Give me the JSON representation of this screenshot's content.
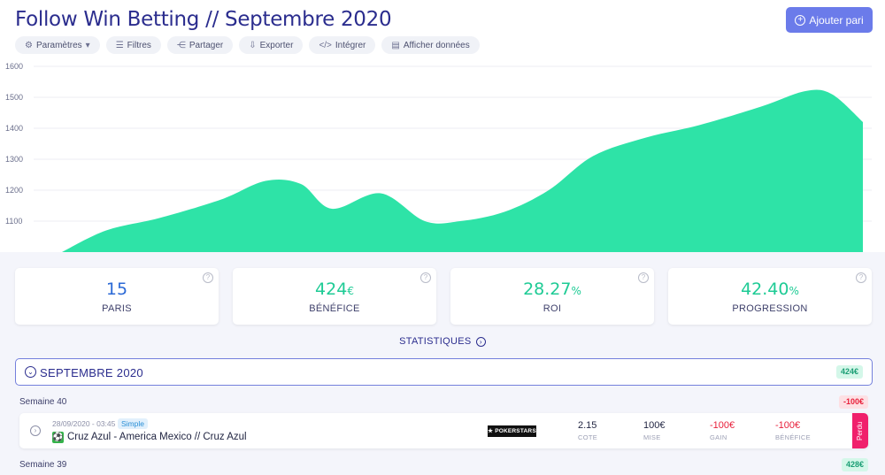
{
  "header": {
    "title": "Follow Win Betting // Septembre 2020",
    "add_button": "Ajouter pari"
  },
  "toolbar": [
    {
      "label": "Paramètres",
      "icon": "settings-icon"
    },
    {
      "label": "Filtres",
      "icon": "filter-icon"
    },
    {
      "label": "Partager",
      "icon": "share-icon"
    },
    {
      "label": "Exporter",
      "icon": "export-icon"
    },
    {
      "label": "Intégrer",
      "icon": "code-icon"
    },
    {
      "label": "Afficher données",
      "icon": "chart-icon"
    }
  ],
  "chart_data": {
    "type": "area",
    "y_ticks": [
      "1600",
      "1500",
      "1400",
      "1300",
      "1200",
      "1100"
    ],
    "ylim": [
      1000,
      1620
    ],
    "points": [
      [
        0.07,
        1000
      ],
      [
        0.12,
        1070
      ],
      [
        0.18,
        1110
      ],
      [
        0.25,
        1170
      ],
      [
        0.3,
        1230
      ],
      [
        0.34,
        1220
      ],
      [
        0.375,
        1140
      ],
      [
        0.43,
        1190
      ],
      [
        0.48,
        1100
      ],
      [
        0.52,
        1100
      ],
      [
        0.57,
        1130
      ],
      [
        0.62,
        1200
      ],
      [
        0.67,
        1310
      ],
      [
        0.73,
        1370
      ],
      [
        0.79,
        1410
      ],
      [
        0.86,
        1470
      ],
      [
        0.91,
        1520
      ],
      [
        0.94,
        1510
      ],
      [
        0.975,
        1420
      ]
    ],
    "color": "#2ee3a7"
  },
  "stats": [
    {
      "value": "15",
      "unit": "",
      "label": "PARIS",
      "color": "blue"
    },
    {
      "value": "424",
      "unit": "€",
      "label": "BÉNÉFICE",
      "color": "green"
    },
    {
      "value": "28.27",
      "unit": "%",
      "label": "ROI",
      "color": "green"
    },
    {
      "value": "42.40",
      "unit": "%",
      "label": "PROGRESSION",
      "color": "green"
    }
  ],
  "stats_link": "STATISTIQUES",
  "month": {
    "title": "SEPTEMBRE 2020",
    "total": "424€"
  },
  "weeks": [
    {
      "label": "Semaine 40",
      "total": "-100€"
    },
    {
      "label": "Semaine 39",
      "total": "428€"
    }
  ],
  "bet": {
    "date": "28/09/2020 - 03:45",
    "type": "Simple",
    "match": "Cruz Azul - America Mexico // Cruz Azul",
    "bookmaker": "POKERSTARS",
    "cote": {
      "value": "2.15",
      "label": "COTE"
    },
    "mise": {
      "value": "100€",
      "label": "MISE"
    },
    "gain": {
      "value": "-100€",
      "label": "GAIN"
    },
    "benefice": {
      "value": "-100€",
      "label": "BÉNÉFICE"
    },
    "status": "Perdu"
  }
}
